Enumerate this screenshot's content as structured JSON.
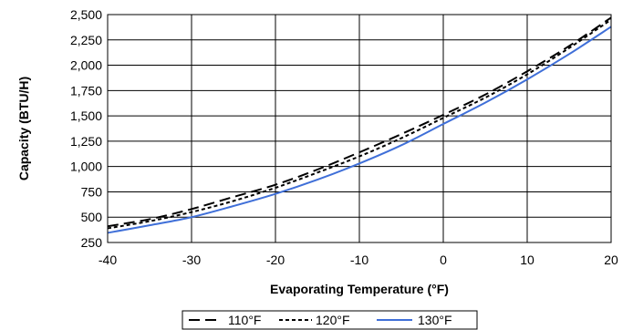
{
  "chart_data": {
    "type": "line",
    "title": "",
    "xlabel": "Evaporating Temperature (°F)",
    "ylabel": "Capacity (BTU/H)",
    "xlim": [
      -40,
      20
    ],
    "ylim": [
      250,
      2500
    ],
    "x_ticks": [
      -40,
      -30,
      -20,
      -10,
      0,
      10,
      20
    ],
    "x_tick_labels": [
      "-40",
      "-30",
      "-20",
      "-10",
      "0",
      "10",
      "20"
    ],
    "y_ticks": [
      250,
      500,
      750,
      1000,
      1250,
      1500,
      1750,
      2000,
      2250,
      2500
    ],
    "y_tick_labels": [
      "250",
      "500",
      "750",
      "1,000",
      "1,250",
      "1,500",
      "1,750",
      "2,000",
      "2,250",
      "2,500"
    ],
    "grid": true,
    "legend_position": "bottom",
    "x": [
      -40,
      -35,
      -30,
      -25,
      -20,
      -15,
      -10,
      -5,
      0,
      5,
      10,
      15,
      20
    ],
    "series": [
      {
        "name": "110°F",
        "color": "#000000",
        "dash": "long-dash",
        "values": [
          410,
          480,
          580,
          700,
          820,
          970,
          1140,
          1320,
          1510,
          1710,
          1940,
          2190,
          2470
        ]
      },
      {
        "name": "120°F",
        "color": "#000000",
        "dash": "dotted",
        "values": [
          390,
          460,
          550,
          660,
          790,
          940,
          1100,
          1280,
          1480,
          1680,
          1910,
          2170,
          2450
        ]
      },
      {
        "name": "130°F",
        "color": "#3f6fd8",
        "dash": "solid",
        "values": [
          345,
          420,
          500,
          610,
          730,
          870,
          1030,
          1210,
          1420,
          1630,
          1860,
          2110,
          2380
        ]
      }
    ]
  }
}
